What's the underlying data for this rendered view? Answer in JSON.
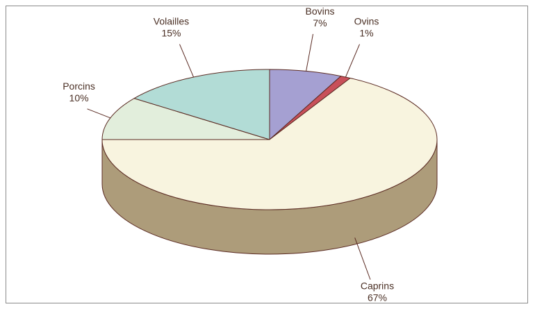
{
  "chart_data": {
    "type": "pie",
    "title": "",
    "legend": "none",
    "categories": [
      "Bovins",
      "Ovins",
      "Caprins",
      "Porcins",
      "Volailles"
    ],
    "values": [
      7,
      1,
      67,
      10,
      15
    ],
    "value_labels": [
      "7%",
      "1%",
      "67%",
      "10%",
      "15%"
    ],
    "colors": [
      "#a5a0d2",
      "#c8505a",
      "#f8f4df",
      "#e2eedc",
      "#b2dcd6"
    ],
    "side_colors": [
      "#7d78a8",
      "#9a3a44",
      "#ad9c7a",
      "#b8c6b0",
      "#86b2ac"
    ],
    "outline_color": "#5a2a22"
  }
}
